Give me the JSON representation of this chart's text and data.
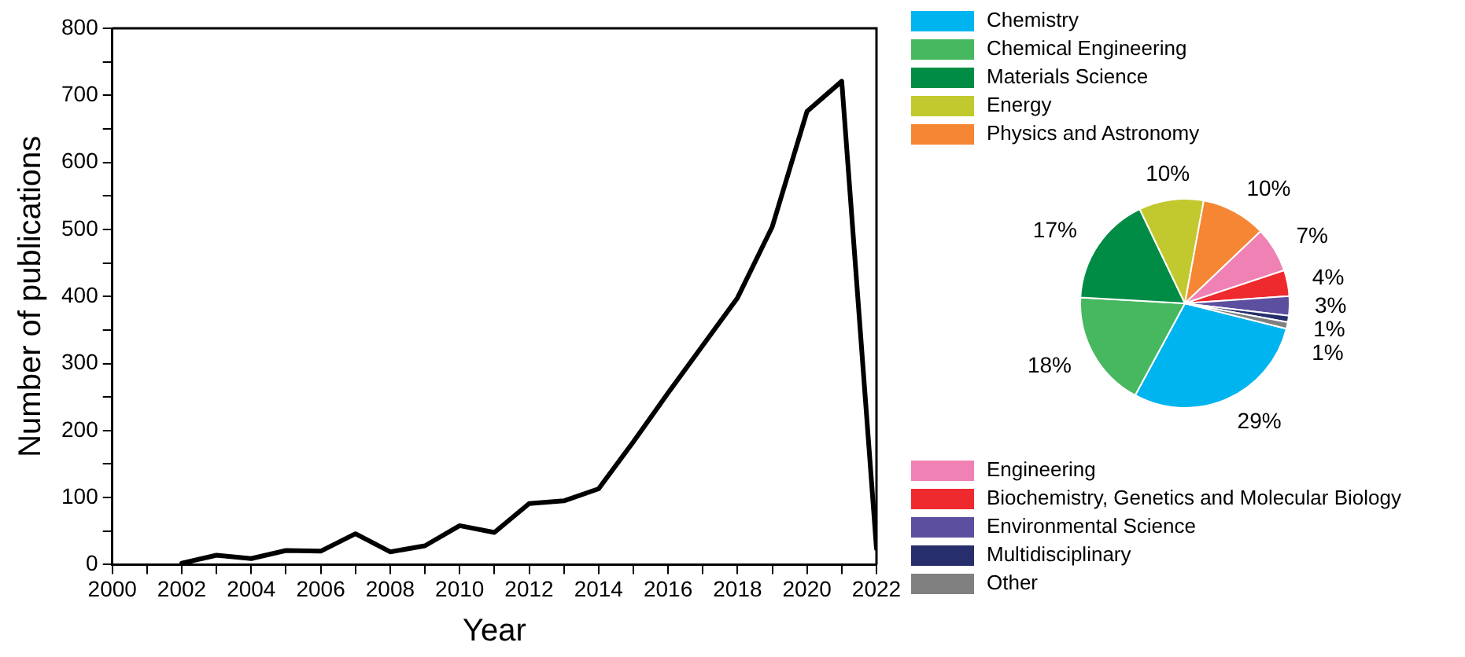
{
  "chart_data": [
    {
      "type": "line",
      "xlabel": "Year",
      "ylabel": "Number of publications",
      "x": [
        2002,
        2003,
        2004,
        2005,
        2006,
        2007,
        2008,
        2009,
        2010,
        2011,
        2012,
        2013,
        2014,
        2015,
        2016,
        2017,
        2018,
        2019,
        2020,
        2021,
        2022
      ],
      "series": [
        {
          "color": "#000000",
          "values": [
            2,
            14,
            9,
            21,
            20,
            46,
            19,
            28,
            58,
            48,
            91,
            95,
            113,
            183,
            256,
            327,
            398,
            504,
            676,
            721,
            24
          ]
        }
      ],
      "xlim": [
        2000,
        2022
      ],
      "ylim": [
        0,
        800
      ],
      "xticks": [
        2000,
        {
          "value": 2001,
          "label": null
        },
        2002,
        {
          "value": 2003,
          "label": null
        },
        2004,
        {
          "value": 2005,
          "label": null
        },
        2006,
        {
          "value": 2007,
          "label": null
        },
        2008,
        {
          "value": 2009,
          "label": null
        },
        2010,
        {
          "value": 2011,
          "label": null
        },
        2012,
        {
          "value": 2013,
          "label": null
        },
        2014,
        {
          "value": 2015,
          "label": null
        },
        2016,
        {
          "value": 2017,
          "label": null
        },
        2018,
        {
          "value": 2019,
          "label": null
        },
        2020,
        {
          "value": 2021,
          "label": null
        },
        2022
      ],
      "yticks": [
        0,
        {
          "value": 50,
          "label": null
        },
        100,
        {
          "value": 150,
          "label": null
        },
        200,
        {
          "value": 250,
          "label": null
        },
        300,
        {
          "value": 350,
          "label": null
        },
        400,
        {
          "value": 450,
          "label": null
        },
        500,
        {
          "value": 550,
          "label": null
        },
        600,
        {
          "value": 650,
          "label": null
        },
        700,
        {
          "value": 750,
          "label": null
        },
        800
      ],
      "grid": false,
      "legend": false,
      "marker": "none",
      "line_style": "solid"
    },
    {
      "type": "pie",
      "categories": [
        "Chemistry",
        "Chemical Engineering",
        "Materials Science",
        "Energy",
        "Physics and Astronomy",
        "Engineering",
        "Biochemistry, Genetics and Molecular Biology",
        "Environmental Science",
        "Multidisciplinary",
        "Other"
      ],
      "values": [
        29,
        18,
        17,
        10,
        10,
        7,
        4,
        3,
        1,
        1
      ],
      "colors": [
        "#00b4ef",
        "#47b860",
        "#008c44",
        "#c2c92e",
        "#f58634",
        "#f081b4",
        "#ee2a2e",
        "#5c4fa0",
        "#262f6b",
        "#808080"
      ],
      "value_labels": [
        "29%",
        "18%",
        "17%",
        "10%",
        "10%",
        "7%",
        "4%",
        "3%",
        "1%",
        "1%"
      ],
      "legend": "left"
    }
  ]
}
